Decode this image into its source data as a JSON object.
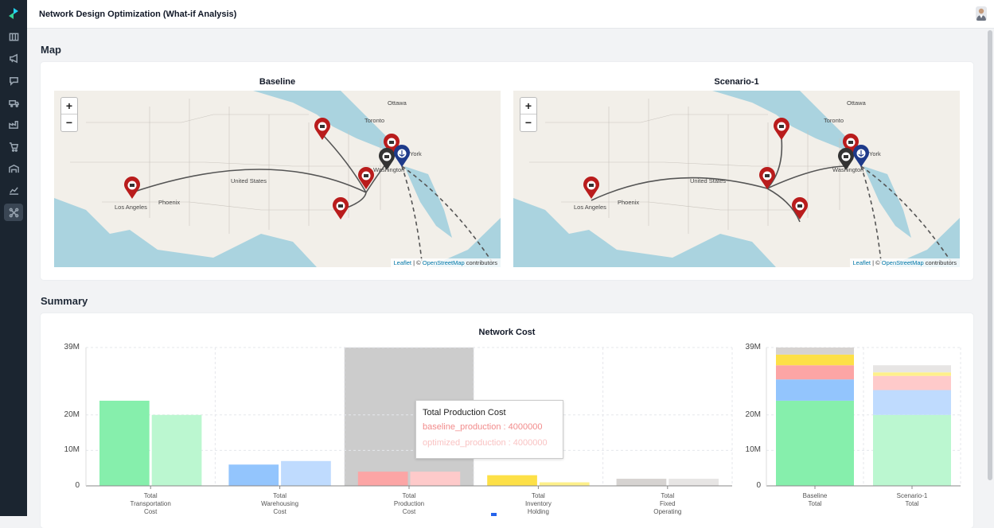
{
  "header": {
    "title": "Network Design Optimization (What-if Analysis)"
  },
  "icons": {
    "rail": [
      "map-icon",
      "megaphone-icon",
      "chat-icon",
      "truck-icon",
      "factory-icon",
      "cart-icon",
      "warehouse-icon",
      "line-chart-icon",
      "network-icon"
    ],
    "zoom_in": "+",
    "zoom_out": "−"
  },
  "sections": {
    "map": "Map",
    "summary": "Summary"
  },
  "maps": [
    {
      "title": "Baseline",
      "cities": [
        "Ottawa",
        "Toronto",
        "York",
        "Washington",
        "United States",
        "Los Angeles",
        "Phoenix"
      ],
      "attribution": {
        "leaflet": "Leaflet",
        "sep": " | © ",
        "osm": "OpenStreetMap",
        "suffix": " contributors"
      }
    },
    {
      "title": "Scenario-1",
      "cities": [
        "Ottawa",
        "Toronto",
        "York",
        "Washington",
        "United States",
        "Los Angeles",
        "Phoenix"
      ],
      "attribution": {
        "leaflet": "Leaflet",
        "sep": " | © ",
        "osm": "OpenStreetMap",
        "suffix": " contributors"
      }
    }
  ],
  "chart_data": [
    {
      "type": "bar",
      "title": "Network Cost",
      "categories": [
        "Total Transportation Cost",
        "Total Warehousing Cost",
        "Total Production Cost",
        "Total Inventory Holding",
        "Total Fixed Operating"
      ],
      "category_label_lines": [
        [
          "Total",
          "Transportation",
          "Cost"
        ],
        [
          "Total",
          "Warehousing",
          "Cost"
        ],
        [
          "Total",
          "Production",
          "Cost"
        ],
        [
          "Total",
          "Inventory",
          "Holding"
        ],
        [
          "Total",
          "Fixed",
          "Operating"
        ]
      ],
      "series": [
        {
          "values": [
            24000000,
            6000000,
            4000000,
            3000000,
            2000000
          ]
        },
        {
          "values": [
            20000000,
            7000000,
            4000000,
            1000000,
            2000000
          ]
        }
      ],
      "yticks": [
        "0",
        "10M",
        "20M",
        "39M"
      ],
      "ytick_values": [
        0,
        10000000,
        20000000,
        39000000
      ],
      "ylim": [
        0,
        39000000
      ],
      "highlighted_category": "Total Production Cost",
      "colors": {
        "baseline": [
          "#86efac",
          "#93c5fd",
          "#fca5a5",
          "#fde047",
          "#d6d3d1"
        ],
        "optimized": [
          "#bbf7d0",
          "#bfdbfe",
          "#fecaca",
          "#fef08a",
          "#e7e5e4"
        ],
        "highlight": "#cccccc"
      },
      "tooltip": {
        "title": "Total Production Cost",
        "baseline_line": "baseline_production : 4000000",
        "optimized_line": "optimized_production : 4000000"
      },
      "grid": true
    },
    {
      "type": "bar",
      "stacked": true,
      "categories": [
        "Baseline Total",
        "Scenario-1 Total"
      ],
      "category_label_lines": [
        [
          "Baseline",
          "Total"
        ],
        [
          "Scenario-1",
          "Total"
        ]
      ],
      "series": [
        {
          "values": [
            24000000,
            20000000
          ],
          "colors": [
            "#86efac",
            "#bbf7d0"
          ]
        },
        {
          "values": [
            6000000,
            7000000
          ],
          "colors": [
            "#93c5fd",
            "#bfdbfe"
          ]
        },
        {
          "values": [
            4000000,
            4000000
          ],
          "colors": [
            "#fca5a5",
            "#fecaca"
          ]
        },
        {
          "values": [
            3000000,
            1000000
          ],
          "colors": [
            "#fde047",
            "#fef08a"
          ]
        },
        {
          "values": [
            2000000,
            2000000
          ],
          "colors": [
            "#d6d3d1",
            "#e7e5e4"
          ]
        }
      ],
      "yticks": [
        "0",
        "10M",
        "20M",
        "39M"
      ],
      "ytick_values": [
        0,
        10000000,
        20000000,
        39000000
      ],
      "ylim": [
        0,
        39000000
      ],
      "grid": true
    }
  ]
}
